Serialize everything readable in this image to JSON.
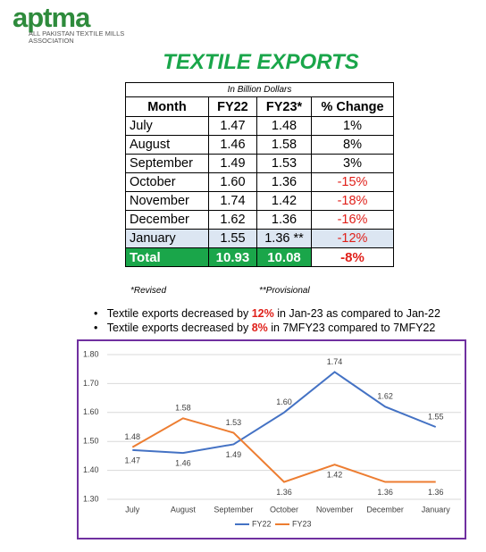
{
  "header": {
    "logo": "aptma",
    "tagline": "ALL PAKISTAN TEXTILE MILLS ASSOCIATION",
    "title": "TEXTILE EXPORTS"
  },
  "table": {
    "caption": "In Billion Dollars",
    "columns": [
      "Month",
      "FY22",
      "FY23*",
      "% Change"
    ],
    "rows": [
      [
        "July",
        "1.47",
        "1.48",
        "1%"
      ],
      [
        "August",
        "1.46",
        "1.58",
        "8%"
      ],
      [
        "September",
        "1.49",
        "1.53",
        "3%"
      ],
      [
        "October",
        "1.60",
        "1.36",
        "-15%"
      ],
      [
        "November",
        "1.74",
        "1.42",
        "-18%"
      ],
      [
        "December",
        "1.62",
        "1.36",
        "-16%"
      ],
      [
        "January",
        "1.55",
        "1.36 **",
        "-12%"
      ]
    ],
    "total": [
      "Total",
      "10.93",
      "10.08",
      "-8%"
    ]
  },
  "notes": [
    "*Revised",
    "**Provisional"
  ],
  "bullets": [
    {
      "before": "Textile exports decreased by ",
      "bold": "12%",
      "after": " in Jan-23 as compared to Jan-22"
    },
    {
      "before": "Textile exports decreased by ",
      "bold": "8%",
      "after": " in 7MFY23 compared to 7MFY22"
    }
  ],
  "chart_data": {
    "type": "line",
    "categories": [
      "July",
      "August",
      "September",
      "October",
      "November",
      "December",
      "January"
    ],
    "series": [
      {
        "name": "FY22",
        "color": "#4472c4",
        "values": [
          1.47,
          1.46,
          1.49,
          1.6,
          1.74,
          1.62,
          1.55
        ],
        "value_labels": [
          "1.47",
          "1.46",
          "1.49",
          "1.60",
          "1.74",
          "1.62",
          "1.55"
        ]
      },
      {
        "name": "FY23",
        "color": "#ed7d31",
        "values": [
          1.48,
          1.58,
          1.53,
          1.36,
          1.42,
          1.36,
          1.36
        ],
        "value_labels": [
          "1.48",
          "1.58",
          "1.53",
          "1.36",
          "1.42",
          "1.36",
          "1.36"
        ]
      }
    ],
    "ylim": [
      1.3,
      1.8
    ],
    "yticks": [
      {
        "value": 1.3,
        "label": "1.30"
      },
      {
        "value": 1.4,
        "label": "1.40"
      },
      {
        "value": 1.5,
        "label": "1.50"
      },
      {
        "value": 1.6,
        "label": "1.60"
      },
      {
        "value": 1.7,
        "label": "1.70"
      },
      {
        "value": 1.8,
        "label": "1.80"
      }
    ],
    "grid": true,
    "legend": "bottom"
  }
}
